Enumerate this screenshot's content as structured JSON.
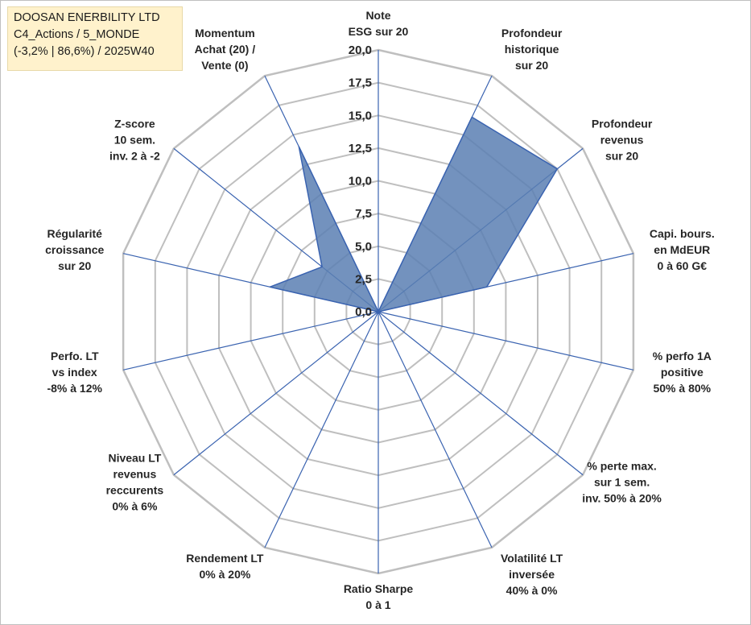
{
  "info": {
    "line1": "DOOSAN ENERBILITY LTD",
    "line2": "C4_Actions / 5_MONDE",
    "line3": "(-3,2% | 86,6%) / 2025W40"
  },
  "colors": {
    "grid": "#bfbfbf",
    "spoke": "#3a63b0",
    "fill": "#5b7fb3",
    "stroke": "#3a63b0",
    "background": "#ffffff",
    "info_bg": "#fff2cc"
  },
  "chart_data": {
    "type": "radar",
    "rmin": 0,
    "rmax": 20,
    "tick_step": 2.5,
    "ticks": [
      "0,0",
      "2,5",
      "5,0",
      "7,5",
      "10,0",
      "12,5",
      "15,0",
      "17,5",
      "20,0"
    ],
    "categories": [
      [
        "Note",
        "ESG sur 20"
      ],
      [
        "Profondeur",
        "historique",
        "sur 20"
      ],
      [
        "Profondeur",
        "revenus",
        "sur 20"
      ],
      [
        "Capi. bours.",
        "en MdEUR",
        "0 à 60 G€"
      ],
      [
        "% perfo 1A",
        "positive",
        "50% à 80%"
      ],
      [
        "% perte max.",
        "sur 1 sem.",
        "inv. 50% à 20%"
      ],
      [
        "Volatilité LT",
        "inversée",
        "40% à 0%"
      ],
      [
        "Ratio Sharpe",
        "0 à 1"
      ],
      [
        "Rendement LT",
        "0% à 20%"
      ],
      [
        "Niveau LT",
        "revenus",
        "reccurents",
        "0% à 6%"
      ],
      [
        "Perfo. LT",
        "vs index",
        "-8% à 12%"
      ],
      [
        "Régularité",
        "croissance",
        "sur 20"
      ],
      [
        "Z-score",
        "10 sem.",
        "inv. 2 à -2"
      ],
      [
        "Momentum",
        "Achat (20) /",
        "Vente (0)"
      ]
    ],
    "series": [
      {
        "name": "DOOSAN ENERBILITY LTD",
        "values": [
          0,
          16.5,
          17.5,
          8.5,
          0,
          0,
          0,
          0,
          0,
          0,
          0,
          8.5,
          5.5,
          14.0
        ]
      }
    ]
  }
}
